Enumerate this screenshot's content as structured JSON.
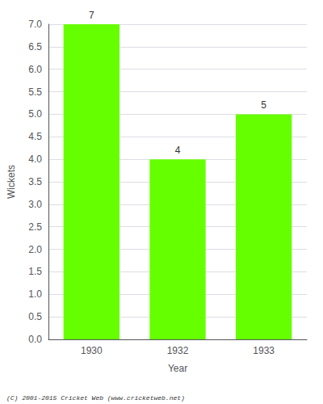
{
  "chart_data": {
    "type": "bar",
    "categories": [
      "1930",
      "1932",
      "1933"
    ],
    "values": [
      7,
      4,
      5
    ],
    "color": "#66ff00",
    "xlabel": "Year",
    "ylabel": "Wickets",
    "ylim": [
      0,
      7.0
    ],
    "yticks": [
      {
        "value": 0.0,
        "label": "0.0"
      },
      0.5,
      {
        "value": 1.0,
        "label": "1.0"
      },
      1.5,
      {
        "value": 2.0,
        "label": "2.0"
      },
      2.5,
      {
        "value": 3.0,
        "label": "3.0"
      },
      3.5,
      {
        "value": 4.0,
        "label": "4.0"
      },
      4.5,
      {
        "value": 5.0,
        "label": "5.0"
      },
      5.5,
      {
        "value": 6.0,
        "label": "6.0"
      },
      6.5,
      {
        "value": 7.0,
        "label": "7.0"
      }
    ],
    "grid": true,
    "data_labels": true,
    "annotations": [
      "(C) 2001-2015 Cricket Web (www.cricketweb.net)"
    ]
  }
}
